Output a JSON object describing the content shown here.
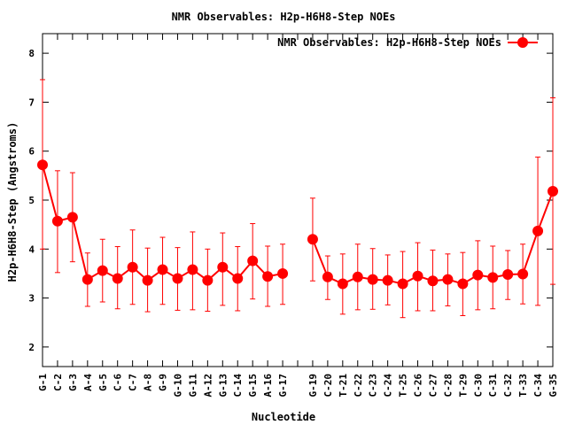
{
  "chart_data": {
    "type": "line",
    "title": "NMR Observables: H2p-H6H8-Step NOEs",
    "xlabel": "Nucleotide",
    "ylabel": "H2p-H6H8-Step (Angstroms)",
    "ylim": [
      1.6,
      8.4
    ],
    "yticks": [
      2,
      3,
      4,
      5,
      6,
      7,
      8
    ],
    "grid": false,
    "legend_position": "top-right",
    "color": "#ff0000",
    "categories": [
      "G-1",
      "C-2",
      "G-3",
      "A-4",
      "G-5",
      "C-6",
      "C-7",
      "A-8",
      "G-9",
      "G-10",
      "G-11",
      "A-12",
      "G-13",
      "C-14",
      "G-15",
      "A-16",
      "G-17",
      "",
      "G-19",
      "C-20",
      "T-21",
      "C-22",
      "C-23",
      "C-24",
      "T-25",
      "C-26",
      "C-27",
      "C-28",
      "T-29",
      "C-30",
      "C-31",
      "C-32",
      "T-33",
      "C-34",
      "G-35"
    ],
    "series": [
      {
        "name": "NMR Observables: H2p-H6H8-Step NOEs",
        "values": [
          5.72,
          4.57,
          4.65,
          3.38,
          3.56,
          3.4,
          3.63,
          3.36,
          3.58,
          3.4,
          3.58,
          3.36,
          3.63,
          3.4,
          3.76,
          3.44,
          3.5,
          null,
          4.2,
          3.43,
          3.29,
          3.43,
          3.38,
          3.36,
          3.29,
          3.45,
          3.35,
          3.38,
          3.29,
          3.47,
          3.42,
          3.48,
          3.49,
          4.37,
          5.18
        ],
        "err_low": [
          4.0,
          3.52,
          3.74,
          2.83,
          2.92,
          2.78,
          2.87,
          2.72,
          2.87,
          2.75,
          2.76,
          2.73,
          2.85,
          2.74,
          2.98,
          2.83,
          2.87,
          null,
          3.35,
          2.97,
          2.67,
          2.76,
          2.77,
          2.86,
          2.6,
          2.74,
          2.74,
          2.84,
          2.64,
          2.76,
          2.78,
          2.97,
          2.88,
          2.85,
          3.28
        ],
        "err_high": [
          7.46,
          5.6,
          5.56,
          3.92,
          4.2,
          4.05,
          4.39,
          4.02,
          4.24,
          4.03,
          4.35,
          4.0,
          4.33,
          4.05,
          4.52,
          4.06,
          4.1,
          null,
          5.04,
          3.86,
          3.9,
          4.1,
          4.01,
          3.88,
          3.95,
          4.13,
          3.98,
          3.9,
          3.93,
          4.17,
          4.06,
          3.97,
          4.1,
          5.88,
          7.09
        ]
      }
    ]
  }
}
